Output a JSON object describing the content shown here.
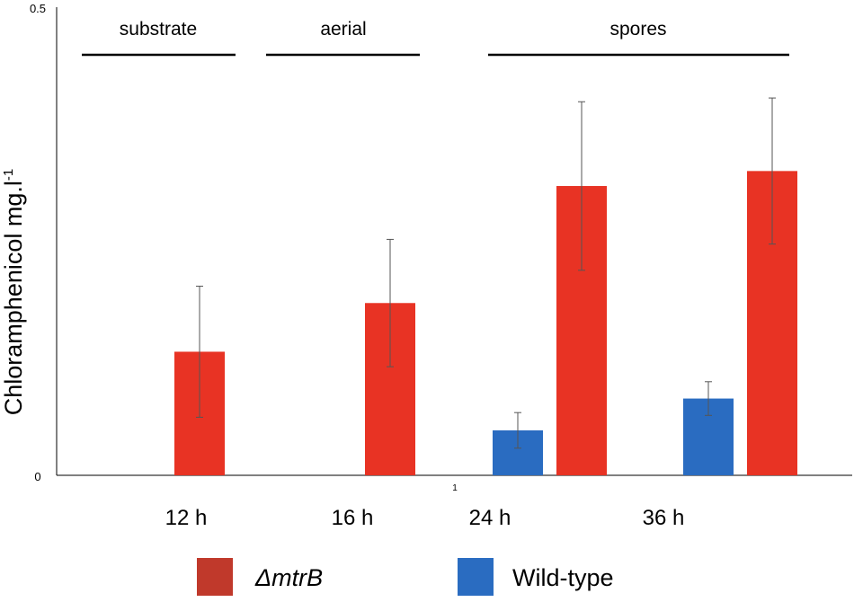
{
  "chart_data": {
    "type": "bar",
    "title": "",
    "xlabel": "",
    "ylabel": "Chloramphenicol mg.l",
    "ylabel_superscript": "-1",
    "ylim": [
      0,
      0.5
    ],
    "yticks": [
      "0",
      "0.5"
    ],
    "categories": [
      "12 h",
      "16 h",
      "24 h",
      "36 h"
    ],
    "series": [
      {
        "name": "Wild-type",
        "color": "#2a6cc1",
        "values": [
          null,
          null,
          0.048,
          0.082
        ],
        "errors": [
          null,
          null,
          0.019,
          0.018
        ]
      },
      {
        "name": "ΔmtrB",
        "color": "#e83324",
        "values": [
          0.132,
          0.184,
          0.309,
          0.325
        ],
        "errors": [
          0.07,
          0.068,
          0.09,
          0.078
        ]
      }
    ],
    "phases": [
      {
        "label": "substrate",
        "categories": [
          "12 h"
        ]
      },
      {
        "label": "aerial",
        "categories": [
          "16 h"
        ]
      },
      {
        "label": "spores",
        "categories": [
          "24 h",
          "36 h"
        ]
      }
    ],
    "stray_label": "1",
    "legend": [
      {
        "label": "ΔmtrB",
        "color": "#c0392b",
        "italic": true
      },
      {
        "label": "Wild-type",
        "color": "#2a6cc1",
        "italic": false
      }
    ],
    "legend_position": "bottom"
  }
}
